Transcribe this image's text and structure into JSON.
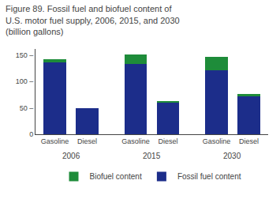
{
  "chart_data": {
    "type": "bar",
    "stacked": true,
    "title": "Figure 89. Fossil fuel and biofuel content of\nU.S. motor fuel supply, 2006, 2015, and 2030\n(billion gallons)",
    "categories": [
      "Gasoline",
      "Diesel",
      "Gasoline",
      "Diesel",
      "Gasoline",
      "Diesel"
    ],
    "annotations": [
      "2006",
      "2015",
      "2030"
    ],
    "series": [
      {
        "name": "Fossil fuel content",
        "color": "#1c2d8a",
        "values": [
          136,
          50,
          134,
          60,
          121,
          72
        ]
      },
      {
        "name": "Biofuel content",
        "color": "#1e8c3a",
        "values": [
          6,
          0,
          18,
          3,
          26,
          5
        ]
      }
    ],
    "ylim": [
      0,
      162
    ],
    "yticks": [
      0,
      {
        "value": 50,
        "label": "50 –"
      },
      {
        "value": 100,
        "label": "100 –"
      },
      {
        "value": 150,
        "label": "150 –"
      }
    ],
    "grid": false,
    "legend": "bottom"
  }
}
